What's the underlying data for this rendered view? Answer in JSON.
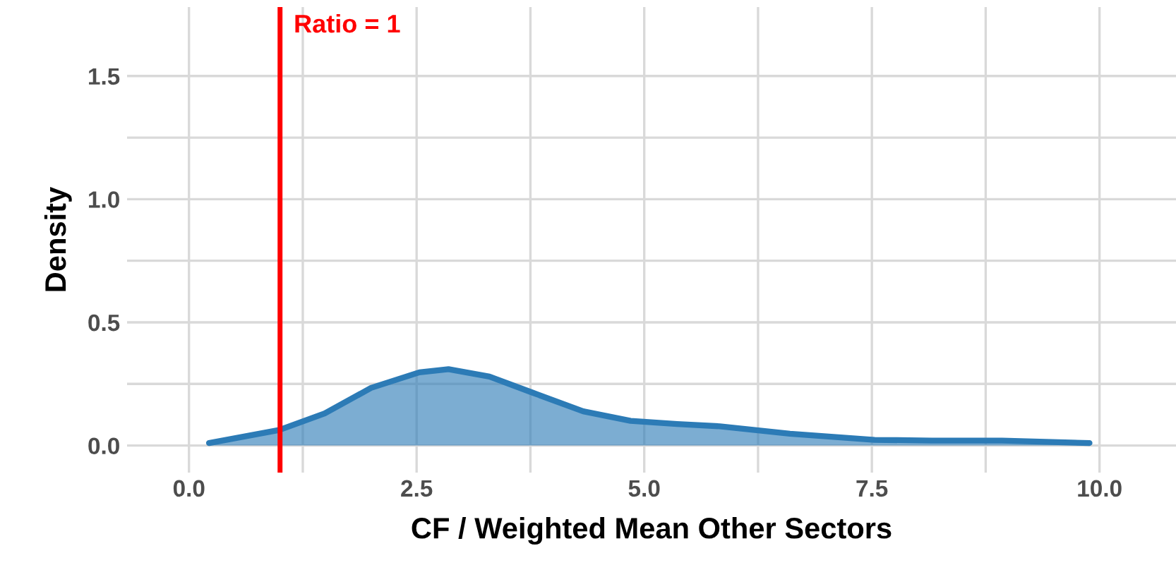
{
  "chart_data": {
    "type": "area",
    "xlabel": "CF / Weighted Mean Other Sectors",
    "ylabel": "Density",
    "x": [
      0.22,
      0.99,
      1.49,
      2.0,
      2.53,
      2.85,
      3.3,
      3.77,
      4.33,
      4.85,
      5.36,
      5.83,
      6.6,
      7.53,
      8.16,
      8.93,
      9.89
    ],
    "series": [
      {
        "color": "#2c7bb6",
        "values": [
          0.01,
          0.063,
          0.13,
          0.234,
          0.297,
          0.31,
          0.28,
          0.215,
          0.139,
          0.1,
          0.087,
          0.078,
          0.048,
          0.023,
          0.02,
          0.02,
          0.01
        ]
      }
    ],
    "xlim": [
      -0.68,
      10.84
    ],
    "ylim": [
      -0.11,
      1.78
    ],
    "xticks": [
      {
        "value": 0,
        "label": "0.0"
      },
      {
        "value": 1.25,
        "label": null
      },
      {
        "value": 2.5,
        "label": "2.5"
      },
      {
        "value": 3.75,
        "label": null
      },
      {
        "value": 5,
        "label": "5.0"
      },
      {
        "value": 6.25,
        "label": null
      },
      {
        "value": 7.5,
        "label": "7.5"
      },
      {
        "value": 8.75,
        "label": null
      },
      {
        "value": 10,
        "label": "10.0"
      }
    ],
    "yticks": [
      {
        "value": 0,
        "label": "0.0"
      },
      {
        "value": 0.25,
        "label": null
      },
      {
        "value": 0.5,
        "label": "0.5"
      },
      {
        "value": 0.75,
        "label": null
      },
      {
        "value": 1,
        "label": "1.0"
      },
      {
        "value": 1.25,
        "label": null
      },
      {
        "value": 1.5,
        "label": "1.5"
      }
    ],
    "ref_lines": [
      {
        "axis": "x",
        "value": 1,
        "label": "Ratio = 1",
        "color": "#ff0000"
      }
    ],
    "grid": true
  }
}
